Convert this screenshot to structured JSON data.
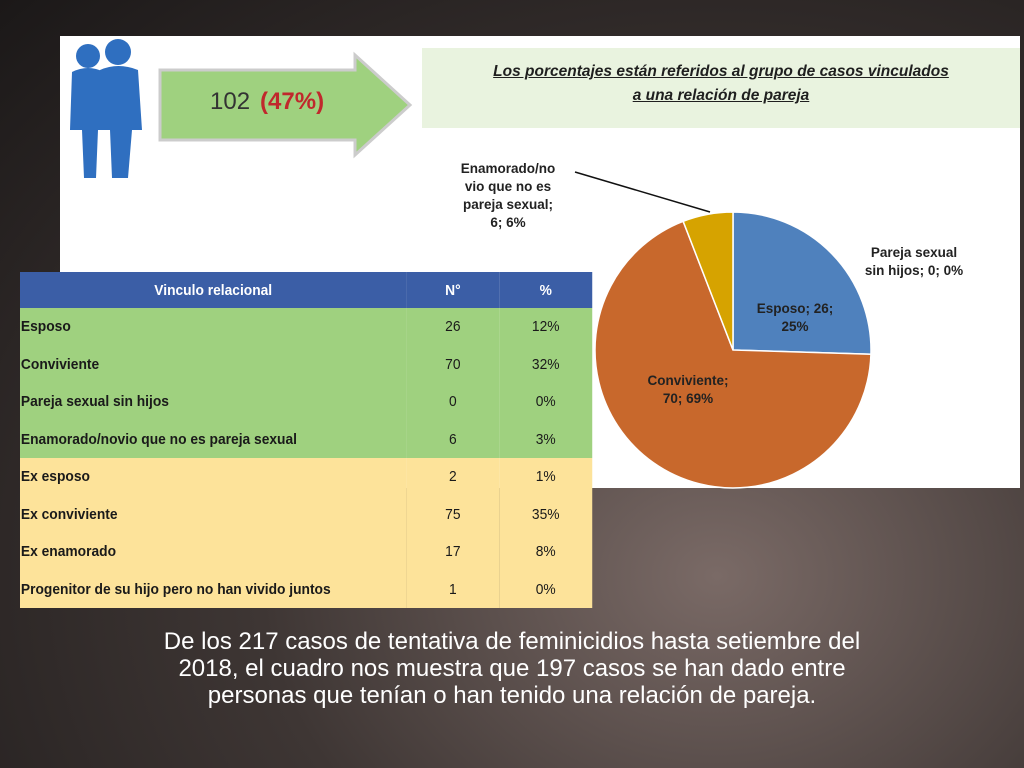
{
  "badge": {
    "count": "102",
    "percent": "(47%)"
  },
  "note": {
    "lines": [
      "Los porcentajes están referidos  al grupo de casos vinculados",
      "a una relación de pareja"
    ]
  },
  "table": {
    "header": [
      "Vinculo relacional",
      "N°",
      "%"
    ],
    "rows": [
      [
        "Esposo",
        "26",
        "12%"
      ],
      [
        "Conviviente",
        "70",
        "32%"
      ],
      [
        "Pareja sexual sin hijos",
        "0",
        "0%"
      ],
      [
        "Enamorado/novio que no es pareja sexual",
        "6",
        "3%"
      ],
      [
        "Ex esposo",
        "2",
        "1%"
      ],
      [
        "Ex conviviente",
        "75",
        "35%"
      ],
      [
        "Ex enamorado",
        "17",
        "8%"
      ],
      [
        "Progenitor de su hijo pero no han vivido juntos",
        "1",
        "0%"
      ]
    ]
  },
  "chart_data": {
    "type": "pie",
    "values": [
      26,
      0,
      70,
      6
    ],
    "value_labels": [
      "Esposo; 26;\n25%",
      "Pareja sexual\nsin hijos; 0; 0%",
      "Conviviente;\n70; 69%",
      "Enamorado/no\nvio que no es\npareja sexual;\n6; 6%"
    ],
    "colors": [
      "#4f81bd",
      "#4f81bd",
      "#c8682c",
      "#d6a300"
    ]
  },
  "caption": {
    "lines": [
      "De los 217 casos de tentativa de feminicidios hasta setiembre del",
      "2018, el cuadro nos muestra que 197 casos se han dado entre",
      "personas que tenían o han tenido una relación de pareja."
    ]
  }
}
